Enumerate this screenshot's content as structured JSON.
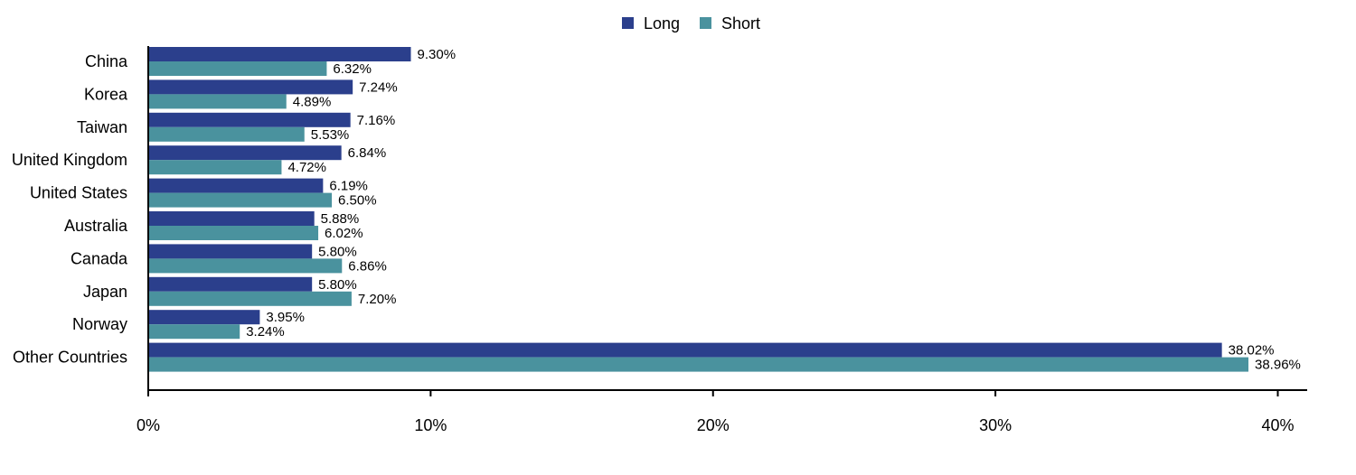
{
  "chart_data": {
    "type": "bar",
    "orientation": "horizontal",
    "categories": [
      "China",
      "Korea",
      "Taiwan",
      "United Kingdom",
      "United States",
      "Australia",
      "Canada",
      "Japan",
      "Norway",
      "Other Countries"
    ],
    "series": [
      {
        "name": "Long",
        "color": "#2b3f8c",
        "values": [
          9.3,
          7.24,
          7.16,
          6.84,
          6.19,
          5.88,
          5.8,
          5.8,
          3.95,
          38.02
        ],
        "labels": [
          "9.30%",
          "7.24%",
          "7.16%",
          "6.84%",
          "6.19%",
          "5.88%",
          "5.80%",
          "5.80%",
          "3.95%",
          "38.02%"
        ]
      },
      {
        "name": "Short",
        "color": "#4a929e",
        "values": [
          6.32,
          4.89,
          5.53,
          4.72,
          6.5,
          6.02,
          6.86,
          7.2,
          3.24,
          38.96
        ],
        "labels": [
          "6.32%",
          "4.89%",
          "5.53%",
          "4.72%",
          "6.50%",
          "6.02%",
          "6.86%",
          "7.20%",
          "3.24%",
          "38.96%"
        ]
      }
    ],
    "xlim": [
      0,
      41
    ],
    "xticks": [
      0,
      10,
      20,
      30,
      40
    ],
    "xtick_labels": [
      "0%",
      "10%",
      "20%",
      "30%",
      "40%"
    ],
    "legend_position": "top-center",
    "grid": false,
    "title": "",
    "xlabel": "",
    "ylabel": ""
  }
}
